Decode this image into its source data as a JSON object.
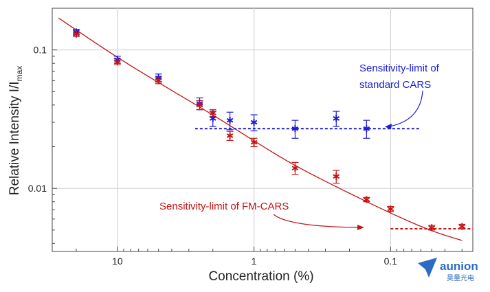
{
  "chart_data": {
    "type": "scatter",
    "xlabel": "Concentration (%)",
    "ylabel": "Relative Intensity I/I",
    "ylabel_sub": "max",
    "x_scale": "log",
    "x_reversed": true,
    "y_scale": "log",
    "xlim": [
      30,
      0.025
    ],
    "ylim": [
      0.0035,
      0.2
    ],
    "x_ticks": [
      {
        "value": 10,
        "label": "10"
      },
      {
        "value": 1,
        "label": "1"
      },
      {
        "value": 0.1,
        "label": "0.1"
      }
    ],
    "y_ticks": [
      {
        "value": 0.1,
        "label": "0.1"
      },
      {
        "value": 0.01,
        "label": "0.01"
      }
    ],
    "grid": true,
    "series": [
      {
        "color": "#1a1ad8",
        "marker": "asterisk",
        "points": [
          {
            "x": 20,
            "y": 0.135,
            "err": 0.006
          },
          {
            "x": 10,
            "y": 0.085,
            "err": 0.005
          },
          {
            "x": 5,
            "y": 0.063,
            "err": 0.004
          },
          {
            "x": 2.5,
            "y": 0.041,
            "err": 0.004
          },
          {
            "x": 2,
            "y": 0.032,
            "err": 0.004
          },
          {
            "x": 1.5,
            "y": 0.031,
            "err": 0.0045
          },
          {
            "x": 1,
            "y": 0.03,
            "err": 0.004
          },
          {
            "x": 0.5,
            "y": 0.027,
            "err": 0.004
          },
          {
            "x": 0.25,
            "y": 0.032,
            "err": 0.004
          },
          {
            "x": 0.15,
            "y": 0.027,
            "err": 0.004
          }
        ]
      },
      {
        "color": "#c41414",
        "marker": "asterisk",
        "points": [
          {
            "x": 20,
            "y": 0.13,
            "err": 0.005
          },
          {
            "x": 10,
            "y": 0.082,
            "err": 0.004
          },
          {
            "x": 5,
            "y": 0.06,
            "err": 0.003
          },
          {
            "x": 2.5,
            "y": 0.04,
            "err": 0.003
          },
          {
            "x": 2,
            "y": 0.035,
            "err": 0.002
          },
          {
            "x": 1.5,
            "y": 0.024,
            "err": 0.0018
          },
          {
            "x": 1,
            "y": 0.0215,
            "err": 0.0015
          },
          {
            "x": 0.5,
            "y": 0.014,
            "err": 0.0014
          },
          {
            "x": 0.25,
            "y": 0.0122,
            "err": 0.0013
          },
          {
            "x": 0.15,
            "y": 0.0083,
            "err": 0.0003
          },
          {
            "x": 0.1,
            "y": 0.0071,
            "err": 0.0003
          },
          {
            "x": 0.05,
            "y": 0.0052,
            "err": 0.0002
          },
          {
            "x": 0.03,
            "y": 0.0053,
            "err": 0.0002
          }
        ]
      }
    ],
    "fit_line": {
      "color": "#c41414",
      "points": [
        [
          27,
          0.17
        ],
        [
          10,
          0.088
        ],
        [
          5,
          0.058
        ],
        [
          2,
          0.034
        ],
        [
          1,
          0.022
        ],
        [
          0.5,
          0.0145
        ],
        [
          0.2,
          0.0092
        ],
        [
          0.1,
          0.0066
        ],
        [
          0.05,
          0.0049
        ],
        [
          0.03,
          0.0042
        ]
      ]
    },
    "limit_lines": [
      {
        "color": "#1a1ad8",
        "y": 0.027,
        "x_from": 2.7,
        "x_to": 0.06
      },
      {
        "color": "#c41414",
        "y": 0.0051,
        "x_from": 0.1,
        "x_to": 0.025
      }
    ],
    "annotations": [
      {
        "color": "#1a1ad8",
        "lines": [
          "Sensitivity-limit of",
          "standard CARS"
        ]
      },
      {
        "color": "#c41414",
        "lines": [
          "Sensitivity-limit of FM-CARS"
        ]
      }
    ]
  },
  "logo": {
    "brand": "aunion",
    "sub": "昊量光电",
    "color": "#2b6cc4"
  }
}
